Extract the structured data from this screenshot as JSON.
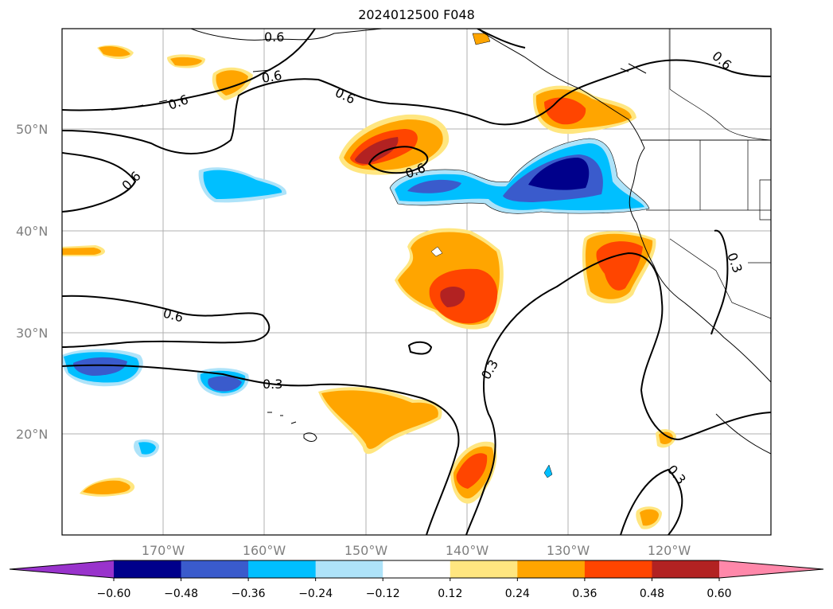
{
  "title": "2024012500 F048",
  "lat_labels": [
    "50°N",
    "40°N",
    "30°N",
    "20°N"
  ],
  "lon_labels": [
    "170°W",
    "160°W",
    "150°W",
    "140°W",
    "130°W",
    "120°W"
  ],
  "colorbar": {
    "ticks": [
      "−0.60",
      "−0.48",
      "−0.36",
      "−0.24",
      "−0.12",
      "0.12",
      "0.24",
      "0.36",
      "0.48",
      "0.60"
    ],
    "colors": [
      "#9933cc",
      "#00008b",
      "#3a5bcc",
      "#00bfff",
      "#aee3f9",
      "#ffffff",
      "#ffe680",
      "#ffa500",
      "#ff4500",
      "#b22222",
      "#ff88aa"
    ]
  },
  "contour_labels": [
    "0.6",
    "0.6",
    "0.6",
    "0.6",
    "0.6",
    "0.6",
    "0.6",
    "0.6",
    "0.3",
    "0.3",
    "0.3",
    "0.3"
  ]
}
